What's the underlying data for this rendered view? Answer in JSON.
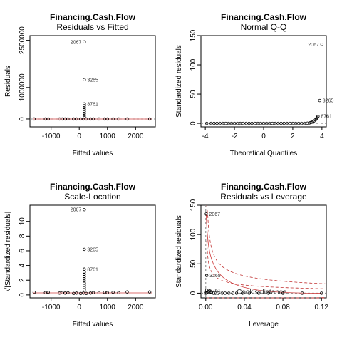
{
  "chart_data": [
    {
      "type": "scatter",
      "title": "Financing.Cash.Flow",
      "subtitle": "Residuals vs Fitted",
      "xlabel": "Fitted values",
      "ylabel": "Residuals",
      "xlim": [
        -1750,
        2700
      ],
      "ylim": [
        -250000,
        2650000
      ],
      "xticks": [
        -1000,
        0,
        1000,
        2000
      ],
      "xtick_labels": [
        "-1000",
        "0",
        "1000",
        "2000"
      ],
      "yticks": [
        0,
        1000000,
        2500000
      ],
      "ytick_labels": [
        "0",
        "1000000",
        "2500000"
      ],
      "hline": 0,
      "points": [
        {
          "x": -1600,
          "y": 0
        },
        {
          "x": -1200,
          "y": 0
        },
        {
          "x": -1100,
          "y": 0
        },
        {
          "x": -700,
          "y": 0
        },
        {
          "x": -600,
          "y": 0
        },
        {
          "x": -500,
          "y": 0
        },
        {
          "x": -400,
          "y": 0
        },
        {
          "x": -200,
          "y": 0
        },
        {
          "x": -100,
          "y": 0
        },
        {
          "x": 50,
          "y": 0
        },
        {
          "x": 150,
          "y": 0
        },
        {
          "x": 250,
          "y": 0
        },
        {
          "x": 400,
          "y": 0
        },
        {
          "x": 500,
          "y": 0
        },
        {
          "x": 700,
          "y": 0
        },
        {
          "x": 900,
          "y": 0
        },
        {
          "x": 1000,
          "y": 0
        },
        {
          "x": 1200,
          "y": 0
        },
        {
          "x": 1400,
          "y": 0
        },
        {
          "x": 1700,
          "y": 0
        },
        {
          "x": 2500,
          "y": 0
        },
        {
          "x": 180,
          "y": 60000
        },
        {
          "x": 180,
          "y": 120000
        },
        {
          "x": 180,
          "y": 180000
        },
        {
          "x": 180,
          "y": 240000
        },
        {
          "x": 180,
          "y": 300000
        },
        {
          "x": 180,
          "y": 360000
        },
        {
          "x": 180,
          "y": 420000
        },
        {
          "x": 180,
          "y": 480000,
          "label": "8761"
        },
        {
          "x": 180,
          "y": 1250000,
          "label": "3265"
        },
        {
          "x": 180,
          "y": 2450000,
          "label": "2067"
        }
      ]
    },
    {
      "type": "scatter",
      "title": "Financing.Cash.Flow",
      "subtitle": "Normal Q-Q",
      "xlabel": "Theoretical Quantiles",
      "ylabel": "Standardized residuals",
      "xlim": [
        -4.3,
        4.3
      ],
      "ylim": [
        -6,
        150
      ],
      "xticks": [
        -4,
        -2,
        0,
        2,
        4
      ],
      "xtick_labels": [
        "-4",
        "-2",
        "0",
        "2",
        "4"
      ],
      "yticks": [
        0,
        50,
        100,
        150
      ],
      "ytick_labels": [
        "0",
        "50",
        "100",
        "150"
      ],
      "points": [
        {
          "x": -3.9,
          "y": 0
        },
        {
          "x": -3.6,
          "y": 0
        },
        {
          "x": -3.4,
          "y": 0
        },
        {
          "x": -3.2,
          "y": 0
        },
        {
          "x": -3.0,
          "y": 0
        },
        {
          "x": -2.8,
          "y": 0
        },
        {
          "x": -2.6,
          "y": 0
        },
        {
          "x": -2.4,
          "y": 0
        },
        {
          "x": -2.2,
          "y": 0
        },
        {
          "x": -2.0,
          "y": 0
        },
        {
          "x": -1.8,
          "y": 0
        },
        {
          "x": -1.6,
          "y": 0
        },
        {
          "x": -1.4,
          "y": 0
        },
        {
          "x": -1.2,
          "y": 0
        },
        {
          "x": -1.0,
          "y": 0
        },
        {
          "x": -0.8,
          "y": 0
        },
        {
          "x": -0.6,
          "y": 0
        },
        {
          "x": -0.4,
          "y": 0
        },
        {
          "x": -0.2,
          "y": 0
        },
        {
          "x": 0.0,
          "y": 0
        },
        {
          "x": 0.2,
          "y": 0
        },
        {
          "x": 0.4,
          "y": 0
        },
        {
          "x": 0.6,
          "y": 0
        },
        {
          "x": 0.8,
          "y": 0
        },
        {
          "x": 1.0,
          "y": 0
        },
        {
          "x": 1.2,
          "y": 0
        },
        {
          "x": 1.4,
          "y": 0
        },
        {
          "x": 1.6,
          "y": 0
        },
        {
          "x": 1.8,
          "y": 0
        },
        {
          "x": 2.0,
          "y": 0
        },
        {
          "x": 2.2,
          "y": 0
        },
        {
          "x": 2.4,
          "y": 0
        },
        {
          "x": 2.6,
          "y": 0
        },
        {
          "x": 2.8,
          "y": 0
        },
        {
          "x": 3.0,
          "y": 0.3
        },
        {
          "x": 3.15,
          "y": 0.8
        },
        {
          "x": 3.25,
          "y": 1.5
        },
        {
          "x": 3.35,
          "y": 2.5
        },
        {
          "x": 3.45,
          "y": 4
        },
        {
          "x": 3.55,
          "y": 6
        },
        {
          "x": 3.62,
          "y": 8
        },
        {
          "x": 3.68,
          "y": 10
        },
        {
          "x": 3.73,
          "y": 12,
          "label": "8761"
        },
        {
          "x": 3.85,
          "y": 39,
          "label": "3265"
        },
        {
          "x": 4.0,
          "y": 135,
          "label": "2067"
        }
      ]
    },
    {
      "type": "scatter",
      "title": "Financing.Cash.Flow",
      "subtitle": "Scale-Location",
      "xlabel": "Fitted values",
      "ylabel": "√|Standardized residuals|",
      "xlim": [
        -1750,
        2700
      ],
      "ylim": [
        -0.4,
        12.2
      ],
      "xticks": [
        -1000,
        0,
        1000,
        2000
      ],
      "xtick_labels": [
        "-1000",
        "0",
        "1000",
        "2000"
      ],
      "yticks": [
        0,
        2,
        4,
        6,
        8,
        10
      ],
      "ytick_labels": [
        "0",
        "2",
        "4",
        "6",
        "8",
        "10"
      ],
      "points": [
        {
          "x": -1600,
          "y": 0.35
        },
        {
          "x": -1200,
          "y": 0.3
        },
        {
          "x": -1100,
          "y": 0.35
        },
        {
          "x": -700,
          "y": 0.25
        },
        {
          "x": -600,
          "y": 0.3
        },
        {
          "x": -500,
          "y": 0.25
        },
        {
          "x": -400,
          "y": 0.3
        },
        {
          "x": -200,
          "y": 0.2
        },
        {
          "x": -100,
          "y": 0.25
        },
        {
          "x": 50,
          "y": 0.2
        },
        {
          "x": 150,
          "y": 0.25
        },
        {
          "x": 250,
          "y": 0.2
        },
        {
          "x": 400,
          "y": 0.25
        },
        {
          "x": 500,
          "y": 0.3
        },
        {
          "x": 700,
          "y": 0.3
        },
        {
          "x": 900,
          "y": 0.35
        },
        {
          "x": 1000,
          "y": 0.3
        },
        {
          "x": 1200,
          "y": 0.35
        },
        {
          "x": 1400,
          "y": 0.3
        },
        {
          "x": 1700,
          "y": 0.4
        },
        {
          "x": 2500,
          "y": 0.4
        },
        {
          "x": 180,
          "y": 0.7
        },
        {
          "x": 180,
          "y": 1.0
        },
        {
          "x": 180,
          "y": 1.3
        },
        {
          "x": 180,
          "y": 1.6
        },
        {
          "x": 180,
          "y": 1.9
        },
        {
          "x": 180,
          "y": 2.2
        },
        {
          "x": 180,
          "y": 2.5
        },
        {
          "x": 180,
          "y": 2.8
        },
        {
          "x": 180,
          "y": 3.1
        },
        {
          "x": 180,
          "y": 3.5,
          "label": "8761"
        },
        {
          "x": 180,
          "y": 6.2,
          "label": "3265"
        },
        {
          "x": 180,
          "y": 11.6,
          "label": "2067"
        }
      ]
    },
    {
      "type": "scatter",
      "title": "Financing.Cash.Flow",
      "subtitle": "Residuals vs Leverage",
      "xlabel": "Leverage",
      "ylabel": "Standardized residuals",
      "xlim": [
        -0.005,
        0.125
      ],
      "ylim": [
        -8,
        150
      ],
      "xticks": [
        0.0,
        0.04,
        0.08,
        0.12
      ],
      "xtick_labels": [
        "0.00",
        "0.04",
        "0.08",
        "0.12"
      ],
      "yticks": [
        0,
        50,
        100,
        150
      ],
      "ytick_labels": [
        "0",
        "50",
        "100",
        "150"
      ],
      "annotation": "Cook's distance",
      "points": [
        {
          "x": 0.0,
          "y": 0
        },
        {
          "x": 0.001,
          "y": 1
        },
        {
          "x": 0.002,
          "y": 2
        },
        {
          "x": 0.003,
          "y": 3
        },
        {
          "x": 0.004,
          "y": 4
        },
        {
          "x": 0.005,
          "y": 2
        },
        {
          "x": 0.006,
          "y": 1
        },
        {
          "x": 0.008,
          "y": 0
        },
        {
          "x": 0.01,
          "y": 0
        },
        {
          "x": 0.013,
          "y": 0
        },
        {
          "x": 0.017,
          "y": 0
        },
        {
          "x": 0.02,
          "y": 0
        },
        {
          "x": 0.024,
          "y": 0
        },
        {
          "x": 0.028,
          "y": 0
        },
        {
          "x": 0.032,
          "y": 0
        },
        {
          "x": 0.038,
          "y": 0
        },
        {
          "x": 0.045,
          "y": 0
        },
        {
          "x": 0.055,
          "y": 0
        },
        {
          "x": 0.065,
          "y": 0
        },
        {
          "x": 0.08,
          "y": 0
        },
        {
          "x": 0.1,
          "y": 0
        },
        {
          "x": 0.12,
          "y": 0
        },
        {
          "x": 0.001,
          "y": 5,
          "label": "8761"
        },
        {
          "x": 0.001,
          "y": 30,
          "label": "3265"
        },
        {
          "x": 0.0005,
          "y": 135,
          "label": "2067"
        }
      ]
    }
  ]
}
